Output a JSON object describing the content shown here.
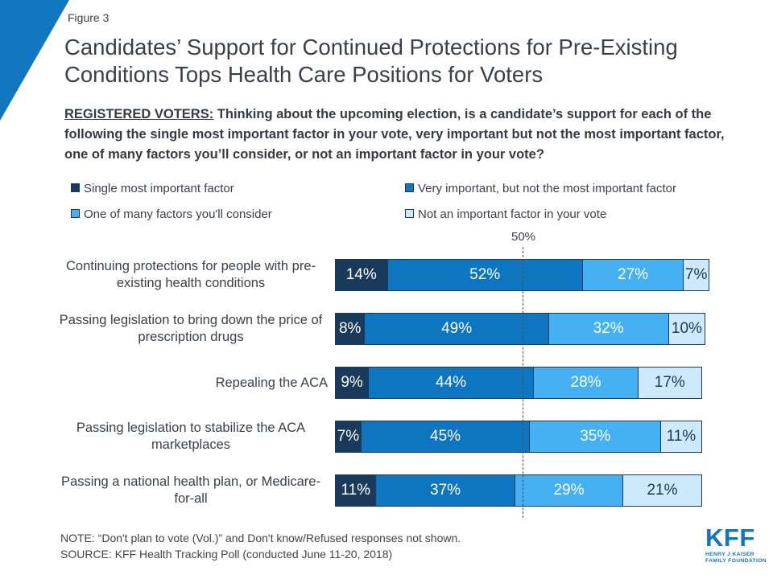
{
  "figure_label": "Figure 3",
  "title": "Candidates’ Support for Continued Protections for Pre-Existing Conditions Tops Health Care Positions for Voters",
  "subtitle": {
    "prefix": "REGISTERED VOTERS:",
    "text": " Thinking about the upcoming election, is a candidate’s support for each of the following the single most important factor in your vote, very important but not the most important factor, one of many factors you’ll consider, or not an important factor in your vote?"
  },
  "colors": {
    "accent": "#1377bf",
    "navy": "#1a3a5c",
    "blue": "#0e76c1",
    "sky": "#45b0f2",
    "pale": "#cde9fb",
    "text": "#39404a"
  },
  "legend": {
    "items": [
      {
        "label": "Single most important factor",
        "color": "#1a3a5c"
      },
      {
        "label": "Very important, but not the most important factor",
        "color": "#0e76c1"
      },
      {
        "label": "One of many factors you'll consider",
        "color": "#45b0f2"
      },
      {
        "label": "Not an important factor in your vote",
        "color": "#cde9fb"
      }
    ]
  },
  "chart_data": {
    "type": "bar",
    "stacked": true,
    "orientation": "horizontal",
    "x_max": 100,
    "value_suffix": "%",
    "reference_line": {
      "value": 50,
      "label": "50%"
    },
    "categories": [
      "Continuing protections for people with pre-existing health conditions",
      "Passing legislation to bring down the price of prescription drugs",
      "Repealing the ACA",
      "Passing legislation to stabilize the ACA marketplaces",
      "Passing a national health plan, or Medicare-for-all"
    ],
    "series": [
      {
        "name": "Single most important factor",
        "color": "#1a3a5c",
        "text_color": "#ffffff",
        "values": [
          14,
          8,
          9,
          7,
          11
        ]
      },
      {
        "name": "Very important, but not the most important factor",
        "color": "#0e76c1",
        "text_color": "#ffffff",
        "values": [
          52,
          49,
          44,
          45,
          37
        ]
      },
      {
        "name": "One of many factors you'll consider",
        "color": "#45b0f2",
        "text_color": "#ffffff",
        "values": [
          27,
          32,
          28,
          35,
          29
        ]
      },
      {
        "name": "Not an important factor in your vote",
        "color": "#cde9fb",
        "text_color": "#1a3a5c",
        "values": [
          7,
          10,
          17,
          11,
          21
        ]
      }
    ]
  },
  "note": "NOTE: “Don't plan to vote (Vol.)” and Don't know/Refused responses not shown.",
  "source": "SOURCE: KFF Health Tracking Poll (conducted June 11-20, 2018)",
  "logo": {
    "text": "KFF",
    "subtext_line1": "HENRY J KAISER",
    "subtext_line2": "FAMILY FOUNDATION"
  }
}
